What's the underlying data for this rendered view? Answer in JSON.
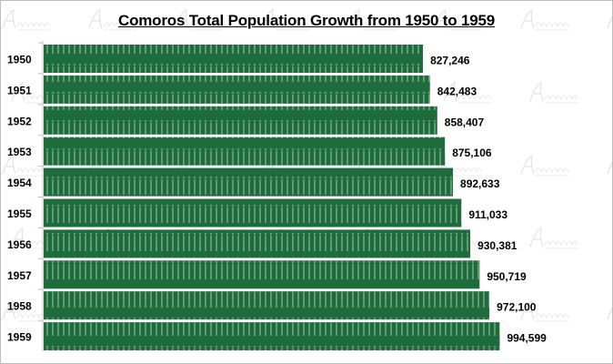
{
  "watermark": "Afroluent",
  "chart_data": {
    "type": "bar",
    "orientation": "horizontal",
    "title": "Comoros  Total Population Growth from 1950 to 1959",
    "categories": [
      "1950",
      "1951",
      "1952",
      "1953",
      "1954",
      "1955",
      "1956",
      "1957",
      "1958",
      "1959"
    ],
    "values": [
      827246,
      842483,
      858407,
      875106,
      892633,
      911033,
      930381,
      950719,
      972100,
      994599
    ],
    "data_labels": [
      "827,246",
      "842,483",
      "858,407",
      "875,106",
      "892,633",
      "911,033",
      "930,381",
      "950,719",
      "972,100",
      "994,599"
    ],
    "xlim": [
      0,
      1200000
    ],
    "grid": false,
    "legend": "none",
    "bar_color": "#1e6b3c",
    "pattern_color": "#5f9a74"
  }
}
